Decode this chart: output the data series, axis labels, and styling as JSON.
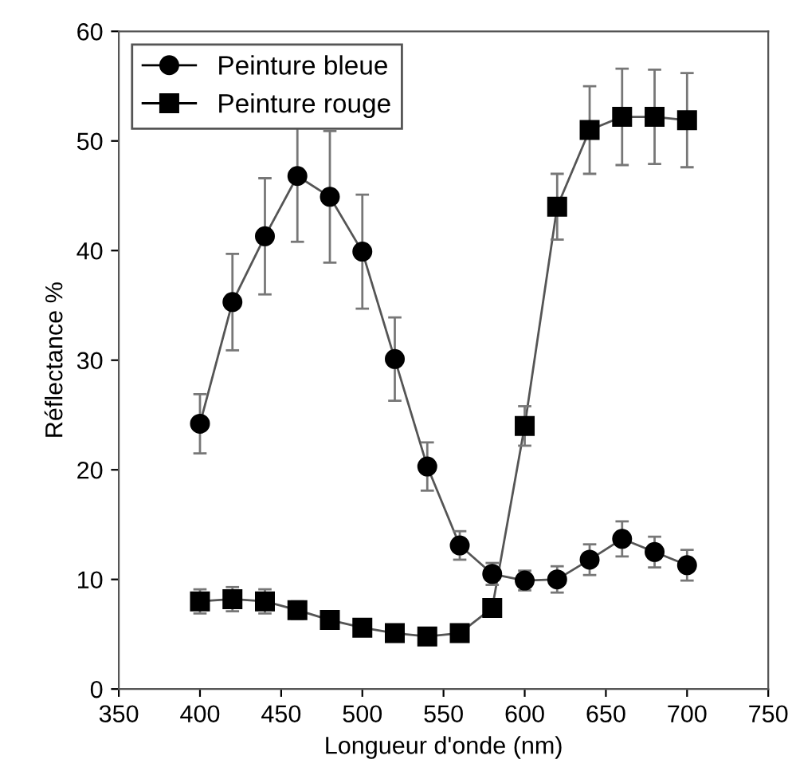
{
  "chart_data": {
    "type": "line",
    "xlabel": "Longueur d'onde (nm)",
    "ylabel": "Réflectance %",
    "x": [
      400,
      420,
      440,
      460,
      480,
      500,
      520,
      540,
      560,
      580,
      600,
      620,
      640,
      660,
      680,
      700
    ],
    "xlim": [
      350,
      750
    ],
    "xticks": [
      350,
      400,
      450,
      500,
      550,
      600,
      650,
      700,
      750
    ],
    "ylim": [
      0,
      60
    ],
    "yticks": [
      0,
      10,
      20,
      30,
      40,
      50,
      60
    ],
    "grid": false,
    "legend": "top left",
    "line_style": "solid",
    "series": [
      {
        "name": "Peinture bleue",
        "color": "#000000",
        "marker": "circle",
        "values": [
          24.2,
          35.3,
          41.3,
          46.8,
          44.9,
          39.9,
          30.1,
          20.3,
          13.1,
          10.5,
          9.9,
          10.0,
          11.8,
          13.7,
          12.5,
          11.3
        ],
        "errors": [
          2.7,
          4.4,
          5.3,
          6.0,
          6.0,
          5.2,
          3.8,
          2.2,
          1.3,
          1.0,
          0.9,
          1.2,
          1.4,
          1.6,
          1.4,
          1.4
        ]
      },
      {
        "name": "Peinture rouge",
        "color": "#000000",
        "marker": "square",
        "values": [
          8.0,
          8.2,
          8.0,
          7.2,
          6.3,
          5.6,
          5.1,
          4.8,
          5.1,
          7.4,
          24.0,
          44.0,
          51.0,
          52.2,
          52.2,
          51.9
        ],
        "errors": [
          1.1,
          1.1,
          1.1,
          0.8,
          null,
          null,
          null,
          null,
          null,
          null,
          1.8,
          3.0,
          4.0,
          4.4,
          4.3,
          4.3
        ]
      }
    ]
  }
}
